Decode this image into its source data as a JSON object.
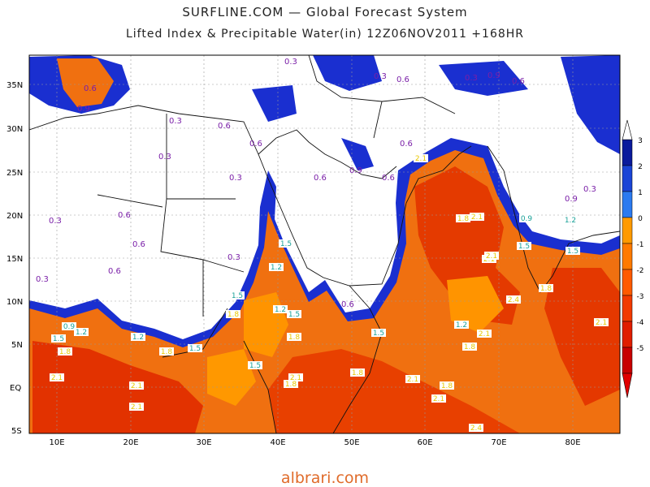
{
  "header": {
    "title": "SURFLINE.COM — Global Forecast System",
    "subtitle": "Lifted Index & Precipitable Water(in) 12Z06NOV2011 +168HR"
  },
  "axes": {
    "lat_labels": [
      "35N",
      "30N",
      "25N",
      "20N",
      "15N",
      "10N",
      "5N",
      "EQ",
      "5S"
    ],
    "lon_labels": [
      "10E",
      "20E",
      "30E",
      "40E",
      "50E",
      "60E",
      "70E",
      "80E"
    ]
  },
  "colorbar": {
    "ticks": [
      "3",
      "2",
      "1",
      "0",
      "-1",
      "-2",
      "-3",
      "-4",
      "-5"
    ],
    "colors": [
      "#0a1a9c",
      "#1a44d6",
      "#2b7af0",
      "#ff9a00",
      "#ff7a00",
      "#ff5a00",
      "#f23a00",
      "#e01e00",
      "#c80000"
    ]
  },
  "contour_labels": {
    "purple": [
      "0.3",
      "0.6",
      "0.9",
      "0.3",
      "0.6",
      "0.3",
      "0.6",
      "0.3",
      "0.6",
      "0.3",
      "0.6",
      "0.3",
      "0.6",
      "0.3",
      "0.6",
      "0.9",
      "0.6",
      "0.3",
      "0.6",
      "0.3",
      "0.6",
      "0.9",
      "0.6",
      "0.3",
      "0.9",
      "0.6"
    ],
    "teal": [
      "0.9",
      "1.2",
      "1.5",
      "1.2",
      "1.5",
      "1.5",
      "1.2",
      "1.5",
      "1.5",
      "1.2",
      "1.5",
      "1.2",
      "1.5",
      "1.5",
      "0.9",
      "1.2",
      "1.5"
    ],
    "yellow": [
      "1.8",
      "2.1",
      "1.8",
      "1.8",
      "2.1",
      "2.1",
      "1.8",
      "2.1",
      "1.8",
      "1.8",
      "2.1",
      "1.8",
      "2.1",
      "2.1",
      "1.8",
      "2.1",
      "2.1",
      "2.4",
      "2.4",
      "2.1",
      "1.8",
      "1.8",
      "2.1",
      "2.1"
    ]
  },
  "watermark": "albrari.com"
}
